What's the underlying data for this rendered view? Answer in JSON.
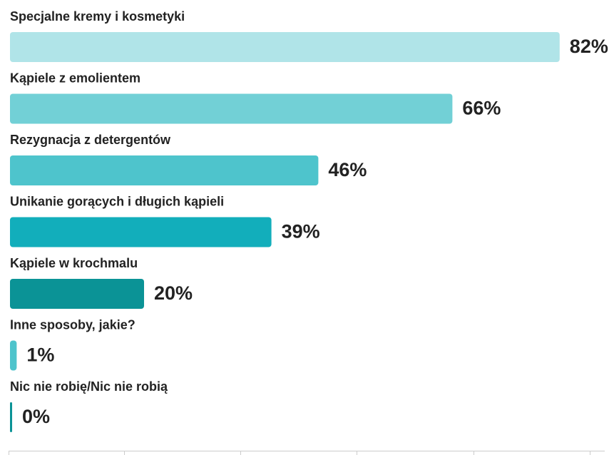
{
  "chart_data": {
    "type": "bar",
    "orientation": "horizontal",
    "categories": [
      "Specjalne kremy i kosmetyki",
      "Kąpiele z emolientem",
      "Rezygnacja z detergentów",
      "Unikanie gorących i długich kąpieli",
      "Kąpiele w krochmalu",
      "Inne sposoby, jakie?",
      "Nic nie robię/Nic nie robią"
    ],
    "values": [
      82,
      66,
      46,
      39,
      20,
      1,
      0
    ],
    "value_labels": [
      "82%",
      "66%",
      "46%",
      "39%",
      "20%",
      "1%",
      "0%"
    ],
    "colors": [
      "#b0e4e8",
      "#72d0d6",
      "#4ec4cc",
      "#12aebb",
      "#0b9396",
      "#4ec4cc",
      "#0b9396"
    ],
    "xlim": [
      0,
      90
    ]
  }
}
